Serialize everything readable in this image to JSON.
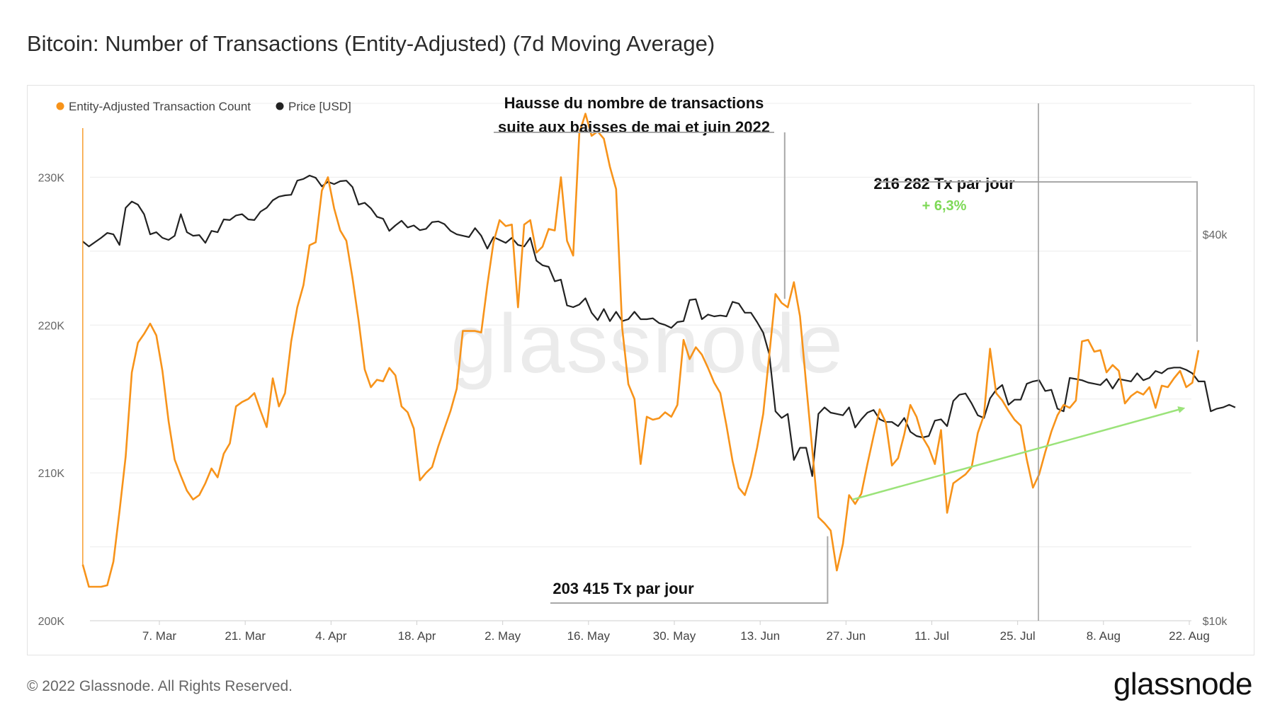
{
  "title": "Bitcoin: Number of Transactions (Entity-Adjusted) (7d Moving Average)",
  "footer": "© 2022 Glassnode. All Rights Reserved.",
  "brand": "glassnode",
  "watermark": "glassnode",
  "colors": {
    "series_tx": "#f7931a",
    "series_price": "#222222",
    "trend": "#9be37a",
    "pct": "#7ed957",
    "grid": "#ececec",
    "annot": "#a8a8a8"
  },
  "chart_data": {
    "type": "line",
    "title": "Bitcoin: Number of Transactions (Entity-Adjusted) (7d Moving Average)",
    "x_ticks": [
      "7. Mar",
      "21. Mar",
      "4. Apr",
      "18. Apr",
      "2. May",
      "16. May",
      "30. May",
      "13. Jun",
      "27. Jun",
      "11. Jul",
      "25. Jul",
      "8. Aug",
      "22. Aug"
    ],
    "x_start_offset": -12.5,
    "x_end_offset": 169.5,
    "y_left": {
      "ticks": [
        200000,
        210000,
        220000,
        230000
      ],
      "tick_labels": [
        "200K",
        "210K",
        "220K",
        "230K"
      ],
      "range": [
        200000,
        235000
      ]
    },
    "y_right": {
      "scale": "log",
      "ticks": [
        10000,
        40000
      ],
      "tick_labels": [
        "$10k",
        "$40k"
      ],
      "range": [
        10000,
        64000
      ]
    },
    "legend_position": "top-left",
    "series": [
      {
        "name": "Entity-Adjusted Transaction Count",
        "axis": "left",
        "values": [
          203800,
          202300,
          202300,
          202300,
          202400,
          204000,
          207400,
          211100,
          216800,
          218800,
          219400,
          220100,
          219300,
          216900,
          213500,
          210900,
          209800,
          208800,
          208200,
          208500,
          209300,
          210300,
          209700,
          211300,
          212000,
          214500,
          214800,
          215000,
          215400,
          214200,
          213100,
          216400,
          214500,
          215400,
          218900,
          221200,
          222700,
          225400,
          225600,
          229100,
          230000,
          227900,
          226400,
          225700,
          223200,
          220300,
          217000,
          215800,
          216300,
          216200,
          217100,
          216600,
          214500,
          214100,
          213000,
          209500,
          210000,
          210400,
          211800,
          213000,
          214200,
          215700,
          219600,
          219600,
          219600,
          219500,
          222700,
          225600,
          227100,
          226700,
          226800,
          221200,
          226800,
          227100,
          224900,
          225300,
          226500,
          226400,
          230000,
          225700,
          224700,
          233000,
          234300,
          232800,
          233100,
          232600,
          230700,
          229200,
          219800,
          216000,
          215000,
          210600,
          213800,
          213600,
          213700,
          214100,
          213800,
          214600,
          219000,
          217700,
          218500,
          218000,
          217100,
          216100,
          215400,
          213200,
          210800,
          209000,
          208500,
          209800,
          211700,
          214000,
          218000,
          222100,
          221500,
          221200,
          222900,
          220600,
          216000,
          211600,
          207000,
          206600,
          206100,
          203400,
          205200,
          208500,
          207900,
          208600,
          210600,
          212500,
          214300,
          213400,
          210500,
          211000,
          212600,
          214600,
          213800,
          212400,
          211700,
          210600,
          212900,
          207300,
          209300,
          209600,
          209900,
          210400,
          212700,
          213900,
          218400,
          215400,
          214900,
          214200,
          213600,
          213200,
          210900,
          209000,
          209900,
          211400,
          212800,
          213900,
          214600,
          214400,
          214900,
          218900,
          219000,
          218200,
          218300,
          216800,
          217300,
          216900,
          214700,
          215200,
          215500,
          215300,
          215800,
          214400,
          215900,
          215800,
          216400,
          216900,
          215800,
          216100,
          218300
        ]
      },
      {
        "name": "Price [USD]",
        "axis": "right",
        "values": [
          39000,
          38300,
          38900,
          39500,
          40200,
          40000,
          38500,
          44000,
          45000,
          44500,
          43000,
          40000,
          40300,
          39500,
          39200,
          39800,
          43000,
          40300,
          39800,
          39900,
          38800,
          40500,
          40300,
          42200,
          42100,
          42800,
          43000,
          42200,
          42100,
          43400,
          44000,
          45200,
          45800,
          46000,
          46100,
          48500,
          48800,
          49400,
          49000,
          47500,
          48300,
          47900,
          48400,
          48500,
          47400,
          44500,
          44800,
          43900,
          42600,
          42300,
          40500,
          41300,
          42000,
          41000,
          41300,
          40600,
          40800,
          41800,
          41900,
          41500,
          40500,
          40000,
          39800,
          39600,
          40900,
          39800,
          38000,
          39600,
          39200,
          38800,
          39500,
          38500,
          38300,
          39500,
          36400,
          35800,
          35600,
          33800,
          34000,
          31000,
          30800,
          31100,
          31800,
          30200,
          29400,
          30600,
          29300,
          30300,
          29300,
          29500,
          30300,
          29500,
          29500,
          29600,
          29100,
          28900,
          28600,
          29200,
          29300,
          31600,
          31700,
          29500,
          30000,
          29800,
          29900,
          29800,
          31400,
          31200,
          30200,
          30200,
          29200,
          28100,
          26000,
          21200,
          20700,
          21000,
          17800,
          18600,
          18600,
          16800,
          21000,
          21500,
          21100,
          21000,
          20900,
          21500,
          20000,
          20600,
          21100,
          21300,
          20600,
          20400,
          20400,
          20100,
          20700,
          19700,
          19400,
          19300,
          19400,
          20500,
          20600,
          20100,
          22000,
          22500,
          22600,
          21800,
          20900,
          20700,
          22200,
          22900,
          23300,
          21700,
          22100,
          22100,
          23400,
          23600,
          23700,
          22800,
          22900,
          21400,
          21200,
          23900,
          23800,
          23700,
          23500,
          23400,
          23300,
          23800,
          23000,
          23800,
          23700,
          23600,
          24300,
          23700,
          23900,
          24500,
          24300,
          24700,
          24800,
          24800,
          24600,
          24300,
          23600,
          23600,
          21200,
          21400,
          21500,
          21700,
          21500
        ]
      }
    ],
    "annotations": [
      {
        "lines": [
          "Hausse du nombre de transactions",
          "suite aux baisses de mai et juin 2022"
        ],
        "points_to": [
          "16. May",
          "17. Jun"
        ]
      },
      {
        "lines": [
          "203 415 Tx par jour"
        ],
        "points_to": "24. Jun"
      },
      {
        "lines": [
          "216 282 Tx par jour",
          "+ 6,3%"
        ],
        "points_to": "22. Aug"
      }
    ],
    "trend_arrow": {
      "from_date_offset": 113,
      "to_date_offset": 167,
      "direction": "up"
    }
  }
}
